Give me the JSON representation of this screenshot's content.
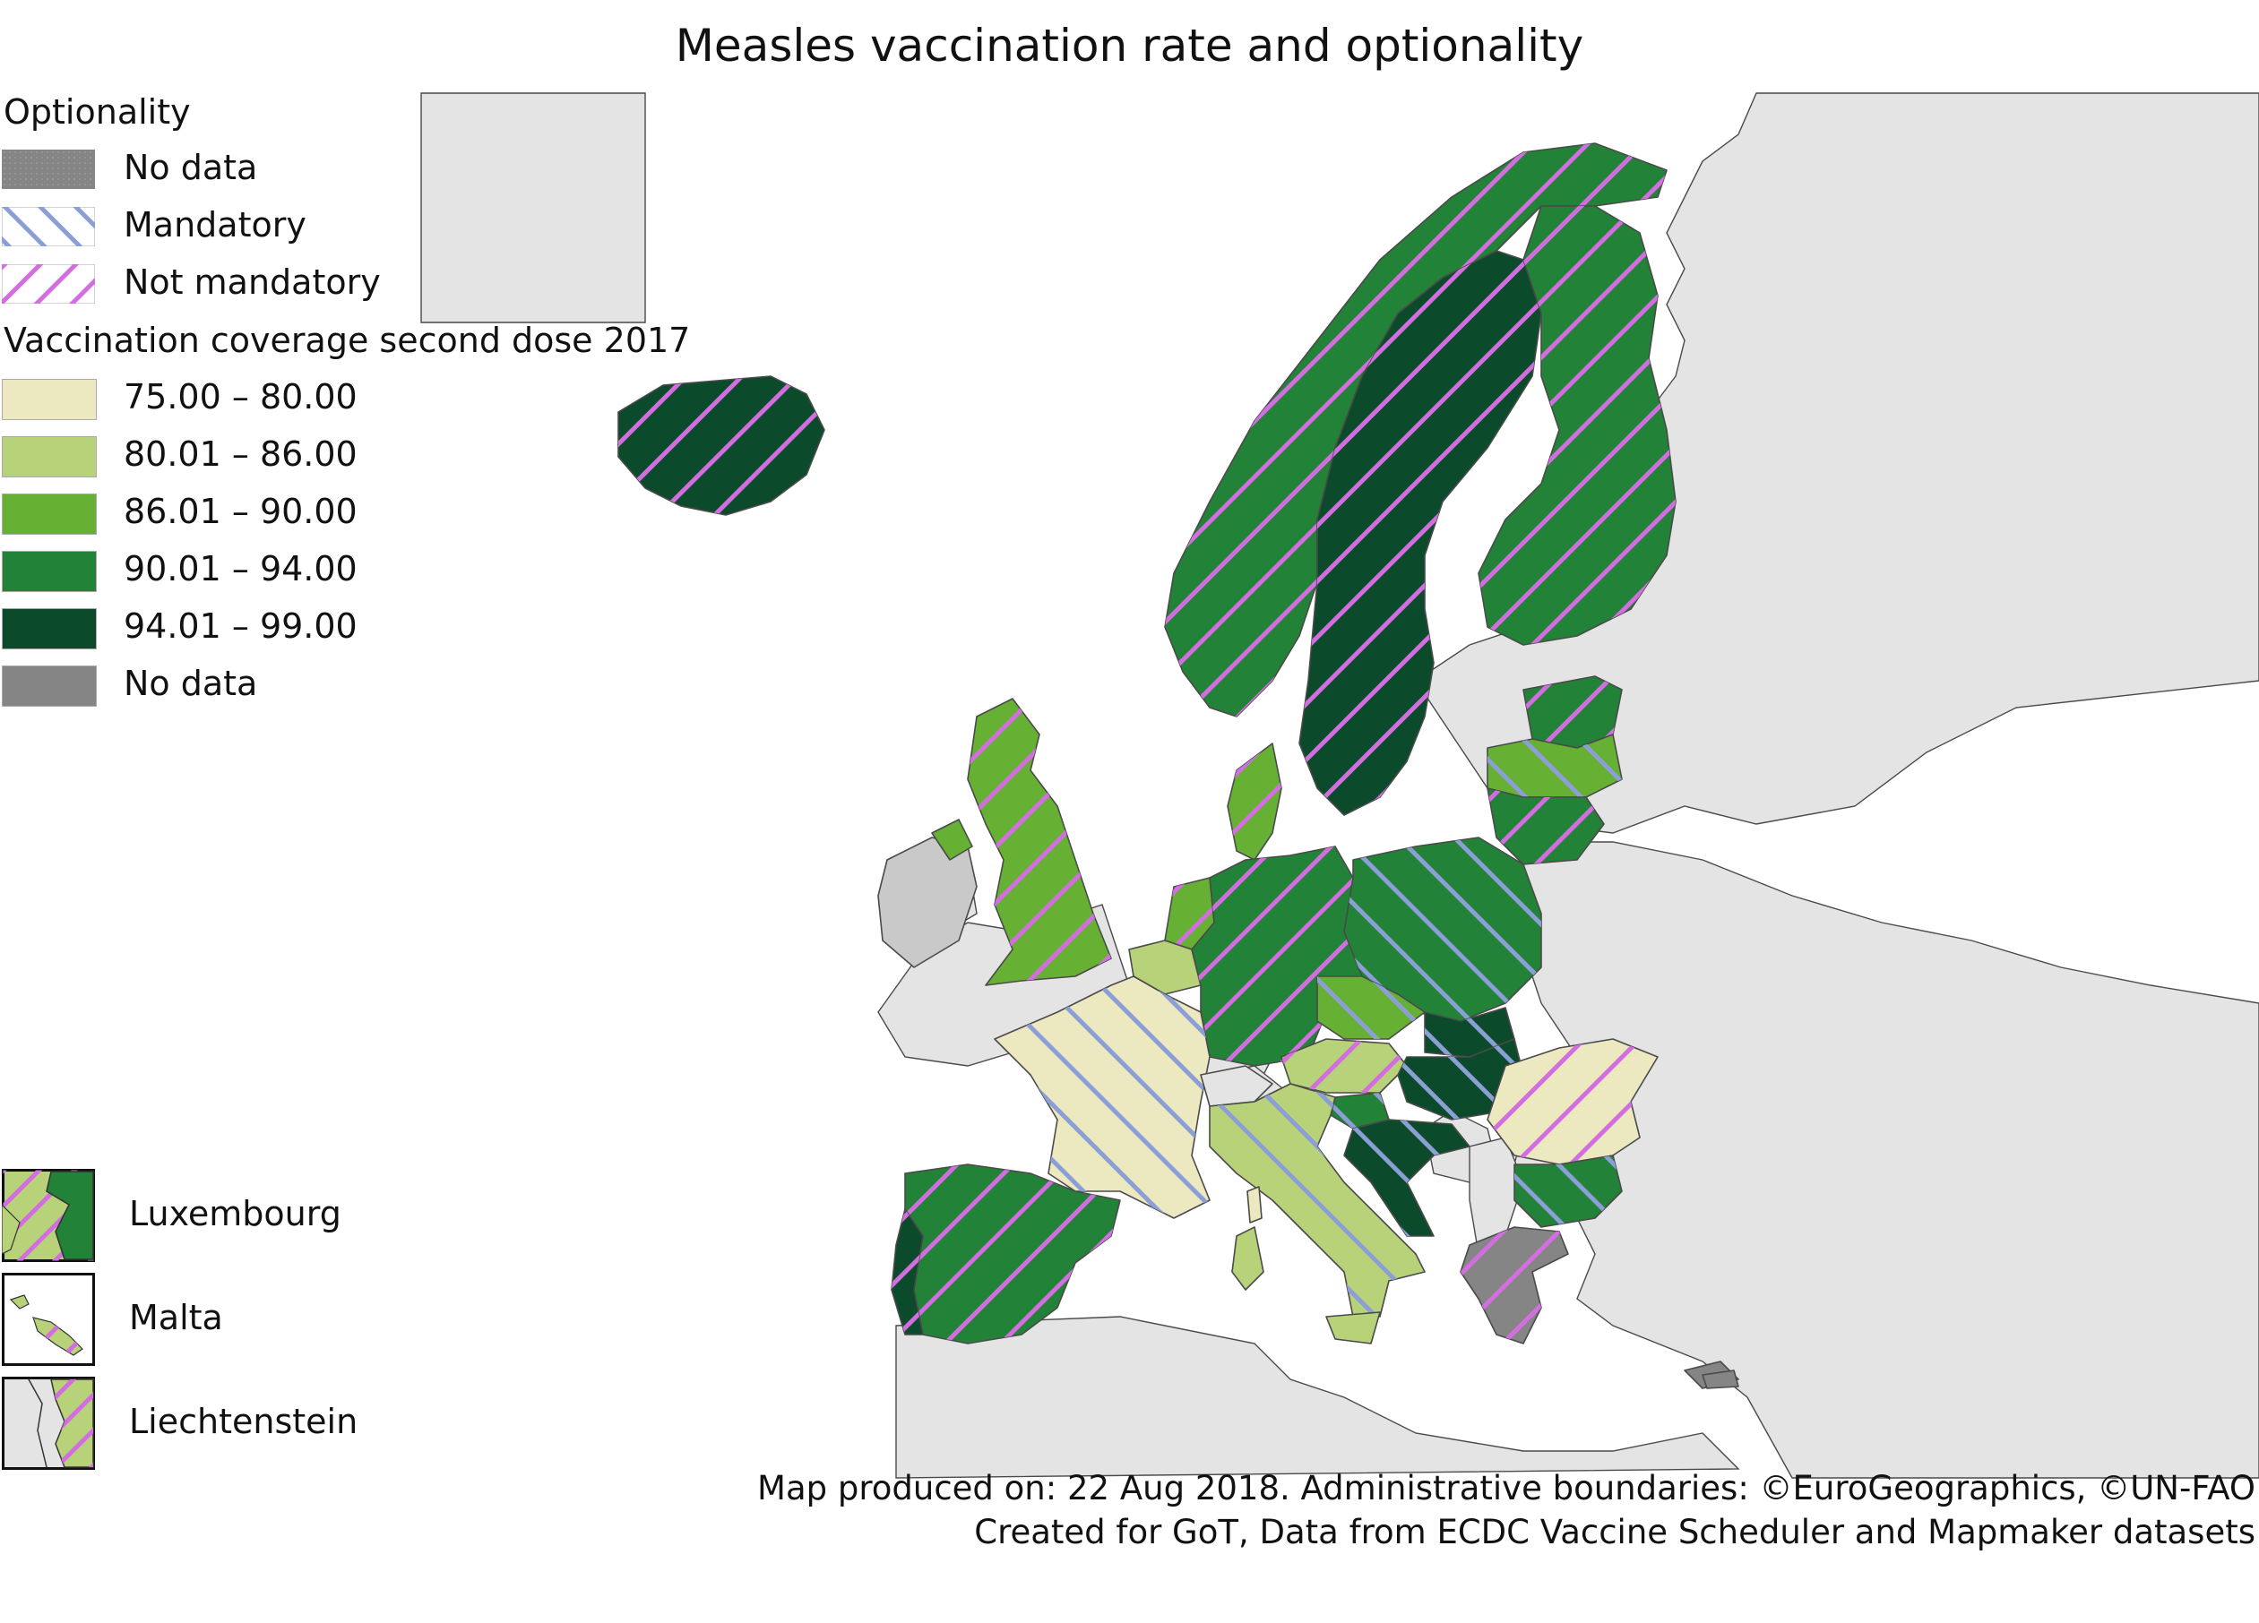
{
  "title": "Measles vaccination rate and optionality",
  "legend": {
    "optionality_heading": "Optionality",
    "optionality": [
      {
        "label": "No data",
        "pattern": "nodata"
      },
      {
        "label": "Mandatory",
        "pattern": "mandatory"
      },
      {
        "label": "Not mandatory",
        "pattern": "notmandatory"
      }
    ],
    "coverage_heading": "Vaccination coverage second dose 2017",
    "coverage": [
      {
        "label": "75.00 – 80.00",
        "color": "#ece8c0"
      },
      {
        "label": "80.01 – 86.00",
        "color": "#b8d27a"
      },
      {
        "label": "86.01 – 90.00",
        "color": "#66b133"
      },
      {
        "label": "90.01 – 94.00",
        "color": "#228237"
      },
      {
        "label": "94.01 – 99.00",
        "color": "#0b4a2a"
      },
      {
        "label": "No data",
        "color": "#858585"
      }
    ]
  },
  "insets": [
    {
      "label": "Luxembourg"
    },
    {
      "label": "Malta"
    },
    {
      "label": "Liechtenstein"
    }
  ],
  "colors": {
    "mandatory_hatch": "#8b9fd6",
    "not_mandatory_hatch": "#d36ee0",
    "non_eu_land": "#e4e4e4",
    "sea": "#ffffff",
    "border": "#4a4a4a"
  },
  "footer": {
    "line1": "Map produced on: 22 Aug 2018. Administrative boundaries: ©EuroGeographics, ©UN-FAO",
    "line2": "Created for GoT, Data from ECDC Vaccine Scheduler and Mapmaker datasets"
  }
}
